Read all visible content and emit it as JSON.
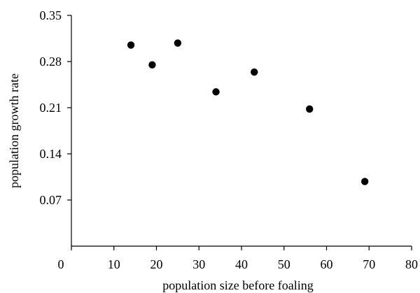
{
  "chart_data": {
    "type": "scatter",
    "xlabel": "population size before foaling",
    "ylabel": "population growth rate",
    "xlim": [
      0,
      80
    ],
    "ylim": [
      0,
      0.35
    ],
    "x_ticks": [
      "0",
      "10",
      "20",
      "30",
      "40",
      "50",
      "60",
      "70",
      "80"
    ],
    "y_ticks": [
      "0.07",
      "0.14",
      "0.21",
      "0.28",
      "0.35"
    ],
    "grid": false,
    "points": [
      {
        "x": 14,
        "y": 0.305
      },
      {
        "x": 19,
        "y": 0.275
      },
      {
        "x": 25,
        "y": 0.308
      },
      {
        "x": 34,
        "y": 0.234
      },
      {
        "x": 43,
        "y": 0.264
      },
      {
        "x": 56,
        "y": 0.208
      },
      {
        "x": 69,
        "y": 0.098
      }
    ]
  }
}
